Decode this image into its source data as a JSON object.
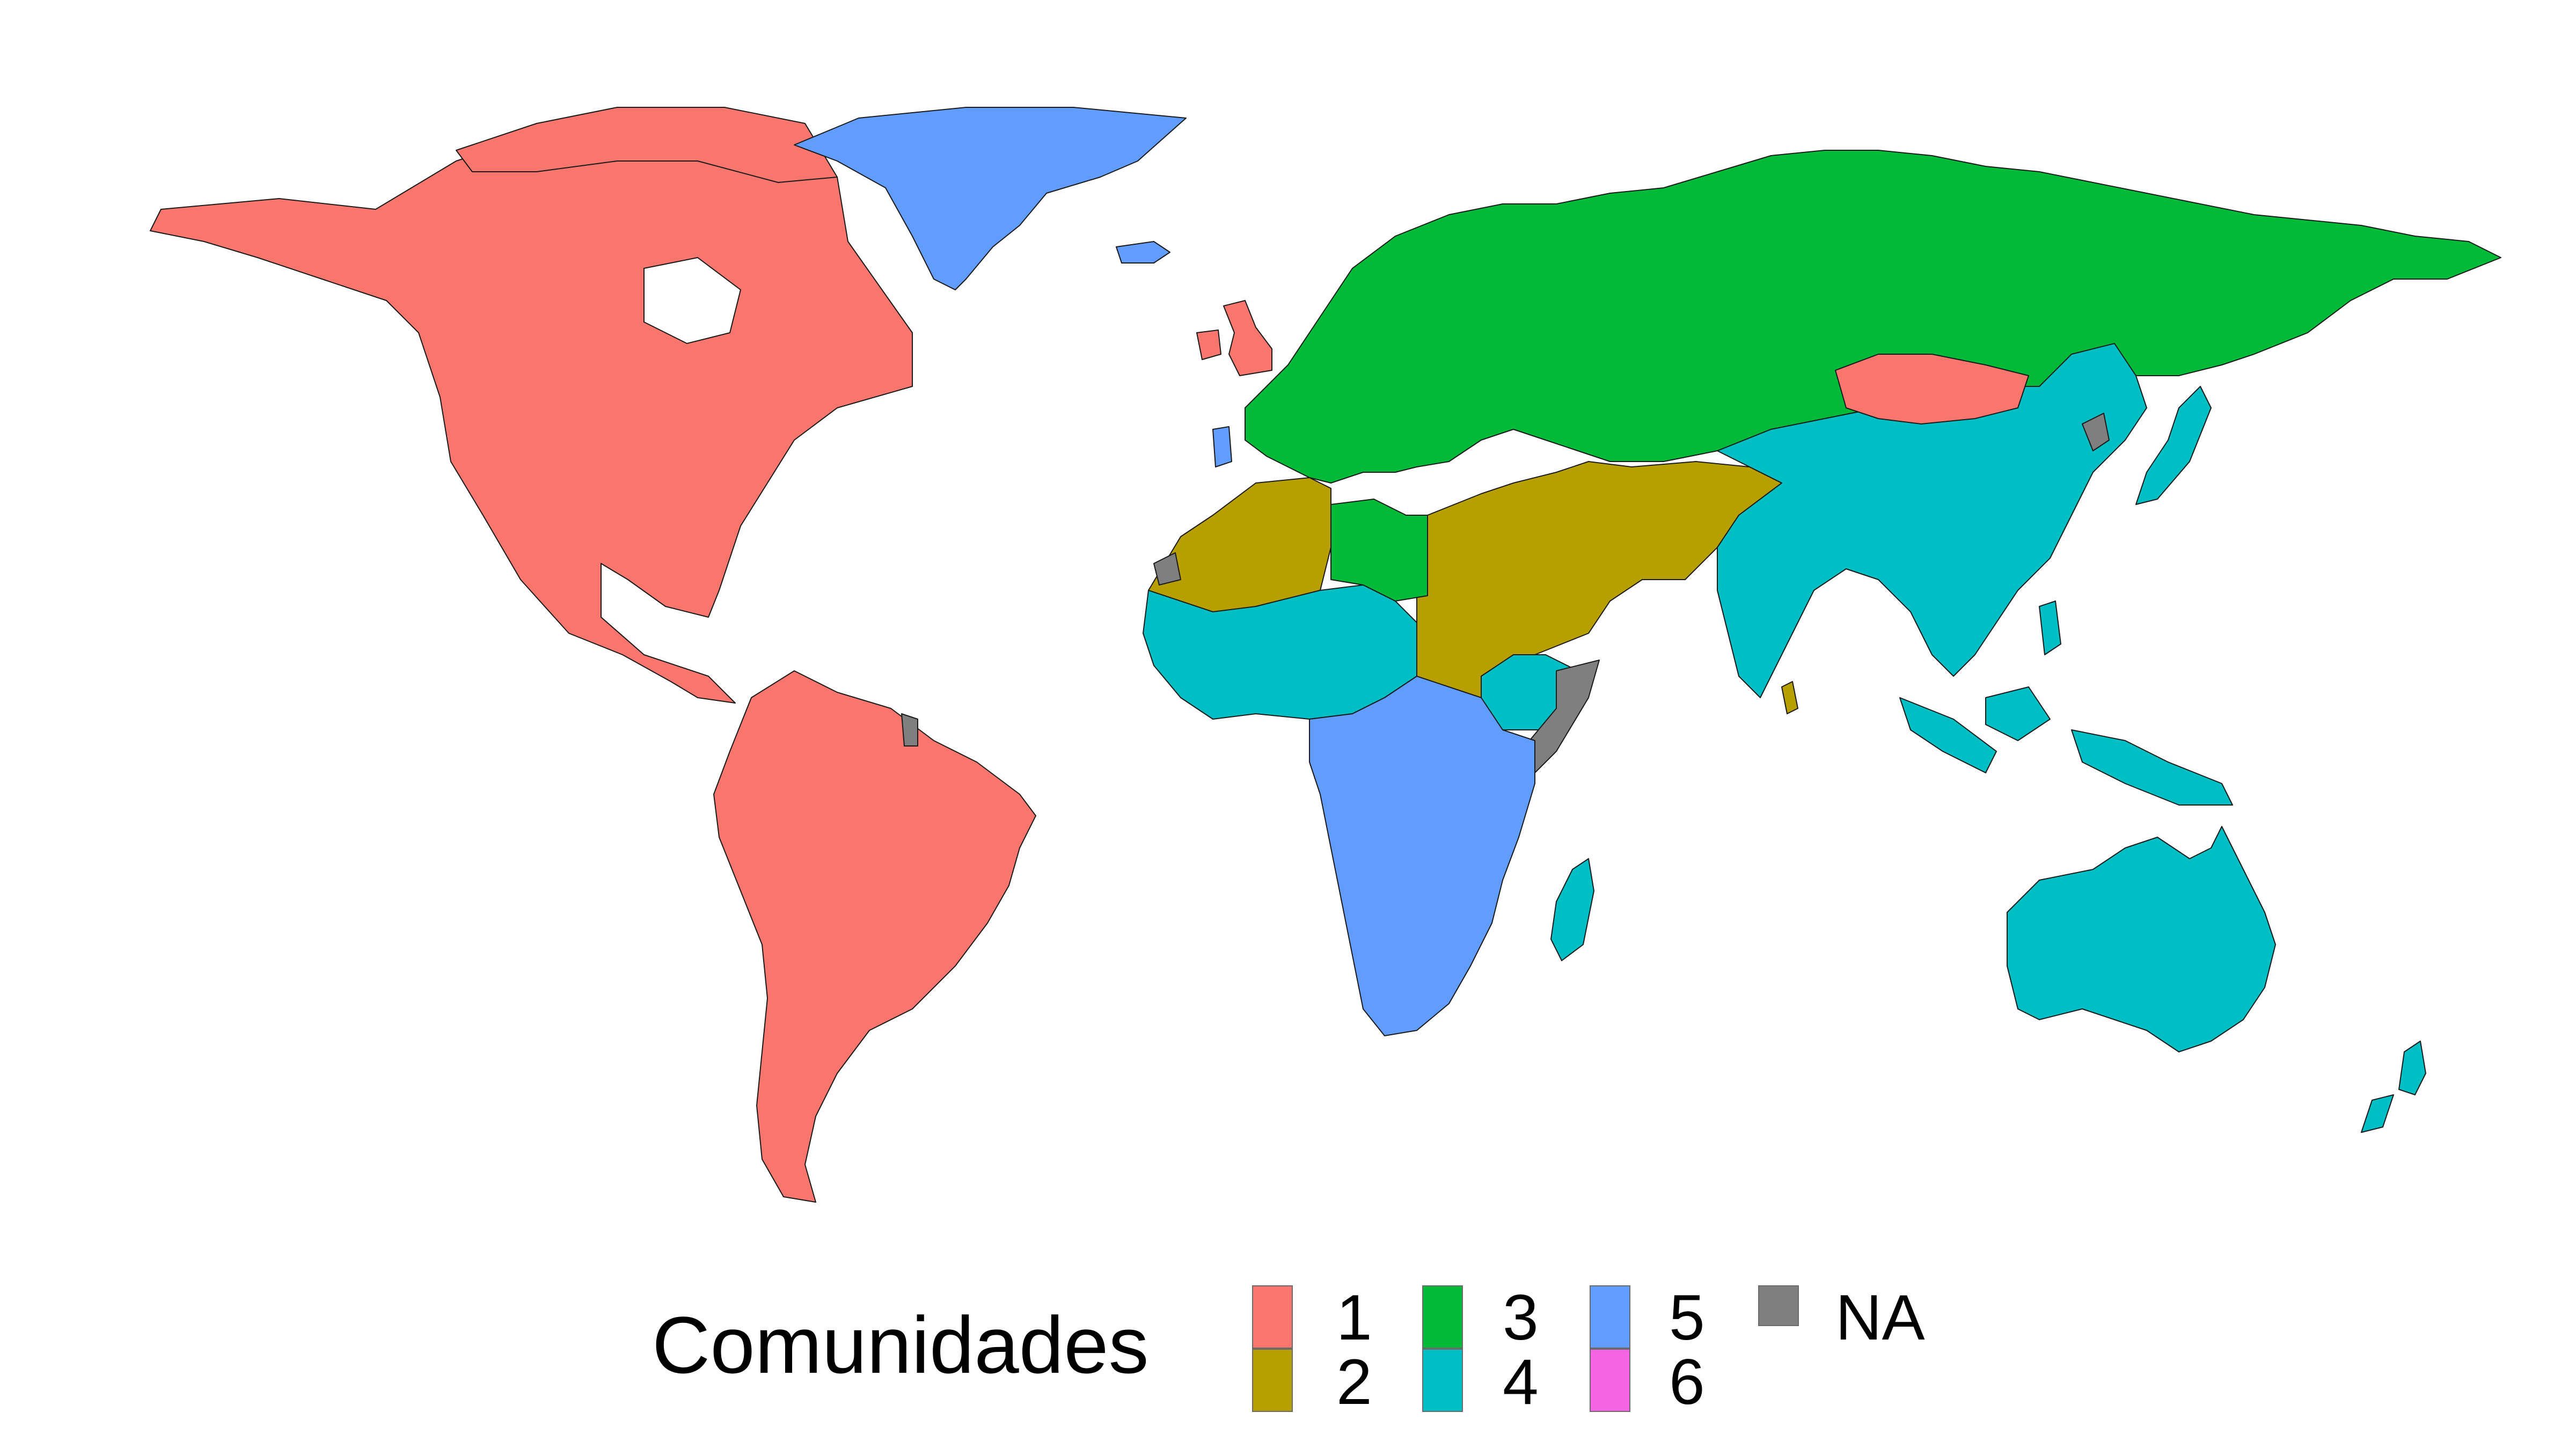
{
  "legend": {
    "title": "Comunidades",
    "entries": [
      {
        "label": "1",
        "color": "#F8766D"
      },
      {
        "label": "2",
        "color": "#B79F00"
      },
      {
        "label": "3",
        "color": "#00BA38"
      },
      {
        "label": "4",
        "color": "#00BFC4"
      },
      {
        "label": "5",
        "color": "#619CFF"
      },
      {
        "label": "6",
        "color": "#F564E3"
      },
      {
        "label": "NA",
        "color": "#7F7F7F"
      }
    ]
  },
  "map": {
    "projection": "equirectangular world map",
    "regions": [
      {
        "name": "north-america",
        "community": "1"
      },
      {
        "name": "south-america",
        "community": "1"
      },
      {
        "name": "mongolia",
        "community": "1"
      },
      {
        "name": "uk-ireland",
        "community": "1"
      },
      {
        "name": "north-africa-middle-east",
        "community": "2"
      },
      {
        "name": "sri-lanka",
        "community": "2"
      },
      {
        "name": "europe-russia",
        "community": "3"
      },
      {
        "name": "libya",
        "community": "3"
      },
      {
        "name": "west-africa",
        "community": "4"
      },
      {
        "name": "east-africa",
        "community": "4"
      },
      {
        "name": "asia",
        "community": "4"
      },
      {
        "name": "australia",
        "community": "4"
      },
      {
        "name": "new-zealand",
        "community": "4"
      },
      {
        "name": "madagascar",
        "community": "4"
      },
      {
        "name": "greenland",
        "community": "5"
      },
      {
        "name": "central-southern-africa",
        "community": "5"
      },
      {
        "name": "portugal",
        "community": "5"
      },
      {
        "name": "somalia",
        "community": "NA"
      },
      {
        "name": "north-korea",
        "community": "NA"
      },
      {
        "name": "french-guiana",
        "community": "NA"
      },
      {
        "name": "western-sahara",
        "community": "NA"
      }
    ]
  }
}
